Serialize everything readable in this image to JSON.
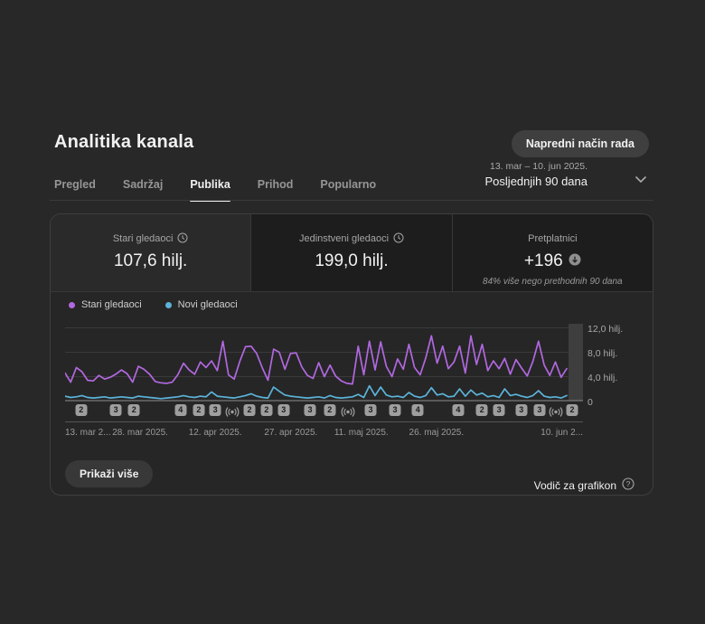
{
  "page": {
    "title": "Analitika kanala"
  },
  "toolbar": {
    "advanced_mode_label": "Napredni način rada"
  },
  "tabs": [
    {
      "label": "Pregled",
      "active": false
    },
    {
      "label": "Sadržaj",
      "active": false
    },
    {
      "label": "Publika",
      "active": true
    },
    {
      "label": "Prihod",
      "active": false
    },
    {
      "label": "Popularno",
      "active": false
    }
  ],
  "date_selector": {
    "range": "13. mar – 10. jun 2025.",
    "preset": "Posljednjih 90 dana"
  },
  "metric_cards": [
    {
      "title": "Stari gledaoci",
      "value": "107,6 hilj."
    },
    {
      "title": "Jedinstveni gledaoci",
      "value": "199,0 hilj."
    },
    {
      "title": "Pretplatnici",
      "value": "+196",
      "subtitle": "84% više nego prethodnih 90 dana"
    }
  ],
  "legend": [
    {
      "label": "Stari gledaoci",
      "color": "#b168e0"
    },
    {
      "label": "Novi gledaoci",
      "color": "#5cb3d9"
    }
  ],
  "chart_data": {
    "type": "line",
    "title": "Stari gledaoci / Novi gledaoci po danu",
    "ylim": [
      0,
      12.8
    ],
    "grid": true,
    "yticks": [
      {
        "value": 12,
        "label": "12,0 hilj."
      },
      {
        "value": 8,
        "label": "8,0 hilj."
      },
      {
        "value": 4,
        "label": "4,0 hilj."
      },
      {
        "value": 0,
        "label": "0"
      }
    ],
    "x_labels": [
      {
        "label": "13. mar 2...",
        "pos": 0,
        "align": "left"
      },
      {
        "label": "28. mar 2025.",
        "pos": 14.5,
        "align": "center"
      },
      {
        "label": "12. apr 2025.",
        "pos": 29,
        "align": "center"
      },
      {
        "label": "27. apr 2025.",
        "pos": 43.6,
        "align": "center"
      },
      {
        "label": "11. maj 2025.",
        "pos": 57.2,
        "align": "center"
      },
      {
        "label": "26. maj 2025.",
        "pos": 71.7,
        "align": "center"
      },
      {
        "label": "10. jun 2...",
        "pos": 100,
        "align": "right"
      }
    ],
    "unit": "hilj.",
    "series": [
      {
        "name": "Stari gledaoci",
        "color": "#b168e0",
        "values": [
          4.6,
          3.1,
          5.5,
          4.8,
          3.4,
          3.3,
          4.2,
          3.6,
          3.9,
          4.4,
          5.1,
          4.5,
          3.1,
          5.7,
          5.2,
          4.4,
          3.2,
          3.0,
          2.9,
          3.1,
          4.3,
          6.2,
          5.1,
          4.4,
          6.4,
          5.5,
          6.6,
          5.0,
          9.8,
          4.3,
          3.6,
          6.5,
          8.9,
          9.0,
          7.8,
          5.4,
          3.4,
          8.5,
          8.0,
          5.2,
          7.8,
          7.9,
          5.6,
          4.2,
          3.7,
          6.3,
          4.0,
          5.9,
          4.1,
          3.3,
          2.9,
          2.8,
          9.0,
          4.3,
          9.8,
          5.1,
          9.7,
          5.7,
          4.0,
          6.9,
          5.2,
          9.3,
          5.5,
          4.3,
          7.1,
          10.7,
          6.2,
          9.0,
          5.3,
          6.4,
          9.0,
          4.6,
          10.7,
          6.0,
          9.3,
          5.0,
          6.6,
          5.3,
          7.0,
          4.4,
          6.8,
          5.4,
          4.1,
          6.5,
          9.8,
          5.9,
          4.2,
          6.4,
          3.9,
          5.3
        ]
      },
      {
        "name": "Novi gledaoci",
        "color": "#5cb3d9",
        "values": [
          0.8,
          0.6,
          0.7,
          0.9,
          0.6,
          0.5,
          0.6,
          0.7,
          0.5,
          0.6,
          0.7,
          0.6,
          0.5,
          0.8,
          0.7,
          0.6,
          0.5,
          0.4,
          0.5,
          0.6,
          0.7,
          0.9,
          0.7,
          0.6,
          0.8,
          0.7,
          1.5,
          0.8,
          0.7,
          0.6,
          0.5,
          0.7,
          0.9,
          1.2,
          0.8,
          0.6,
          0.5,
          2.3,
          1.6,
          1.0,
          0.8,
          0.7,
          0.6,
          0.5,
          0.6,
          0.7,
          0.5,
          0.9,
          0.6,
          0.5,
          0.6,
          0.7,
          1.1,
          0.6,
          2.5,
          0.9,
          2.3,
          1.0,
          0.7,
          0.8,
          0.6,
          1.4,
          0.8,
          0.6,
          0.9,
          2.2,
          1.0,
          1.2,
          0.7,
          0.8,
          2.0,
          0.8,
          1.8,
          1.0,
          1.3,
          0.7,
          0.9,
          0.6,
          2.0,
          0.9,
          1.1,
          0.8,
          0.6,
          0.9,
          1.7,
          0.8,
          0.6,
          0.7,
          0.5,
          0.9
        ]
      }
    ],
    "markers": [
      {
        "type": "count",
        "label": "2",
        "pos": 3.1
      },
      {
        "type": "count",
        "label": "3",
        "pos": 9.8
      },
      {
        "type": "count",
        "label": "2",
        "pos": 13.3
      },
      {
        "type": "count",
        "label": "4",
        "pos": 22.3
      },
      {
        "type": "count",
        "label": "2",
        "pos": 25.8
      },
      {
        "type": "count",
        "label": "3",
        "pos": 29.0
      },
      {
        "type": "live",
        "label": "live",
        "pos": 32.3
      },
      {
        "type": "count",
        "label": "2",
        "pos": 35.6
      },
      {
        "type": "count",
        "label": "2",
        "pos": 38.9
      },
      {
        "type": "count",
        "label": "3",
        "pos": 42.2
      },
      {
        "type": "count",
        "label": "3",
        "pos": 47.3
      },
      {
        "type": "count",
        "label": "2",
        "pos": 51.1
      },
      {
        "type": "live",
        "label": "live",
        "pos": 54.6
      },
      {
        "type": "count",
        "label": "3",
        "pos": 59.0
      },
      {
        "type": "count",
        "label": "3",
        "pos": 63.7
      },
      {
        "type": "count",
        "label": "4",
        "pos": 68.1
      },
      {
        "type": "count",
        "label": "4",
        "pos": 75.9
      },
      {
        "type": "count",
        "label": "2",
        "pos": 80.5
      },
      {
        "type": "count",
        "label": "3",
        "pos": 83.8
      },
      {
        "type": "count",
        "label": "3",
        "pos": 88.1
      },
      {
        "type": "count",
        "label": "3",
        "pos": 91.6
      },
      {
        "type": "live",
        "label": "live",
        "pos": 94.8
      },
      {
        "type": "count",
        "label": "2",
        "pos": 97.9
      }
    ]
  },
  "footer": {
    "show_more_label": "Prikaži više",
    "guide_label": "Vodič za grafikon"
  },
  "colors": {
    "panel_bg": "#262626",
    "card_dark": "#1d1d1d",
    "purple": "#b168e0",
    "blue": "#5cb3d9"
  }
}
